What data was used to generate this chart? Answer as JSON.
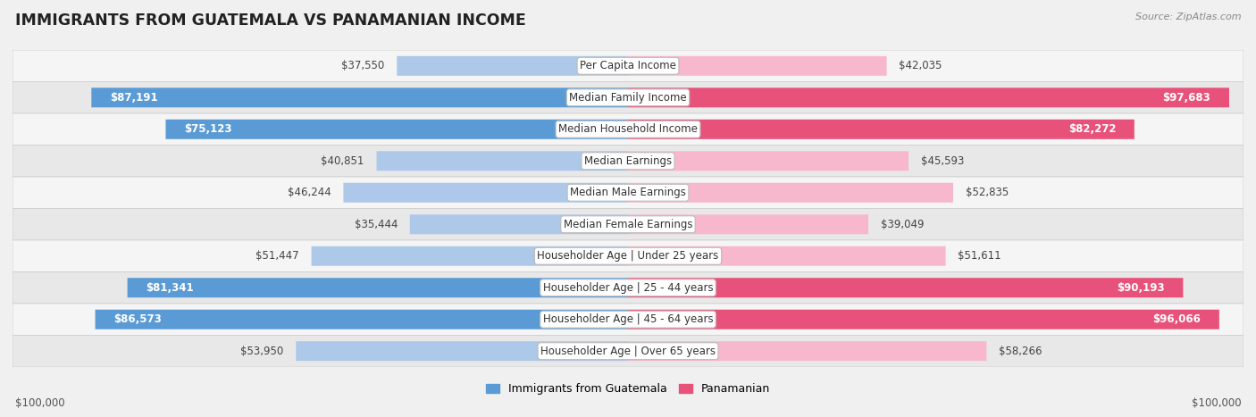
{
  "title": "IMMIGRANTS FROM GUATEMALA VS PANAMANIAN INCOME",
  "source": "Source: ZipAtlas.com",
  "categories": [
    "Per Capita Income",
    "Median Family Income",
    "Median Household Income",
    "Median Earnings",
    "Median Male Earnings",
    "Median Female Earnings",
    "Householder Age | Under 25 years",
    "Householder Age | 25 - 44 years",
    "Householder Age | 45 - 64 years",
    "Householder Age | Over 65 years"
  ],
  "guatemala_values": [
    37550,
    87191,
    75123,
    40851,
    46244,
    35444,
    51447,
    81341,
    86573,
    53950
  ],
  "panamanian_values": [
    42035,
    97683,
    82272,
    45593,
    52835,
    39049,
    51611,
    90193,
    96066,
    58266
  ],
  "guatemala_labels": [
    "$37,550",
    "$87,191",
    "$75,123",
    "$40,851",
    "$46,244",
    "$35,444",
    "$51,447",
    "$81,341",
    "$86,573",
    "$53,950"
  ],
  "panamanian_labels": [
    "$42,035",
    "$97,683",
    "$82,272",
    "$45,593",
    "$52,835",
    "$39,049",
    "$51,611",
    "$90,193",
    "$96,066",
    "$58,266"
  ],
  "guatemala_color_light": "#adc8e8",
  "guatemala_color_dark": "#5b9bd5",
  "panamanian_color_light": "#f7b8ce",
  "panamanian_color_dark": "#e8527a",
  "max_value": 100000,
  "bg_color": "#f0f0f0",
  "row_bg_odd": "#f5f5f5",
  "row_bg_even": "#e8e8e8",
  "legend_guatemala": "Immigrants from Guatemala",
  "legend_panamanian": "Panamanian",
  "xlabel_left": "$100,000",
  "xlabel_right": "$100,000",
  "inside_label_threshold": 60000,
  "label_fontsize": 8.5,
  "cat_fontsize": 8.5
}
